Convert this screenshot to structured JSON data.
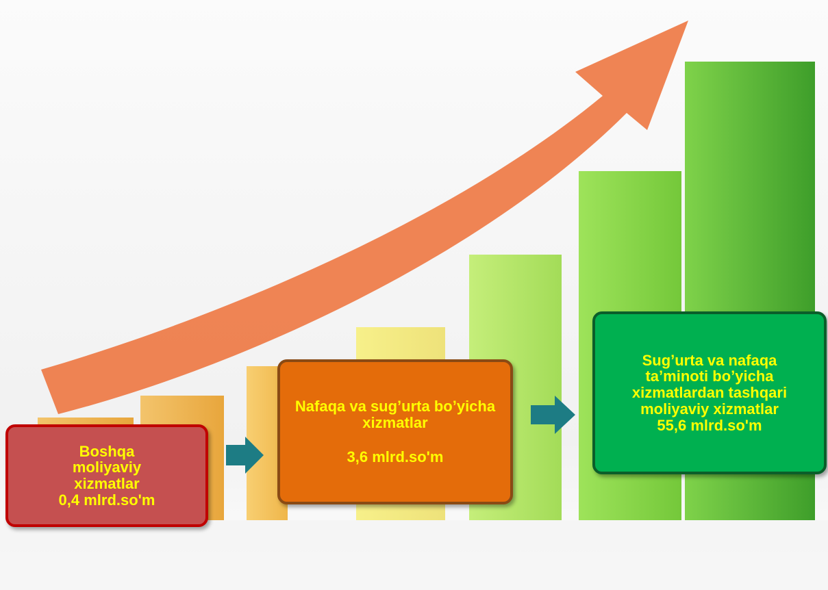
{
  "boxes": [
    {
      "label": "Boshqa moliyaviy xizmatlar",
      "amount": "0,4 mlrd.so'm"
    },
    {
      "label": "Nafaqa va sug’urta bo’yicha xizmatlar",
      "amount": "3,6 mlrd.so'm"
    },
    {
      "label": "Sug’urta va nafaqa ta’minoti bo’yicha xizmatlardan tashqari moliyaviy xizmatlar",
      "amount": "55,6 mlrd.so'm"
    }
  ]
}
